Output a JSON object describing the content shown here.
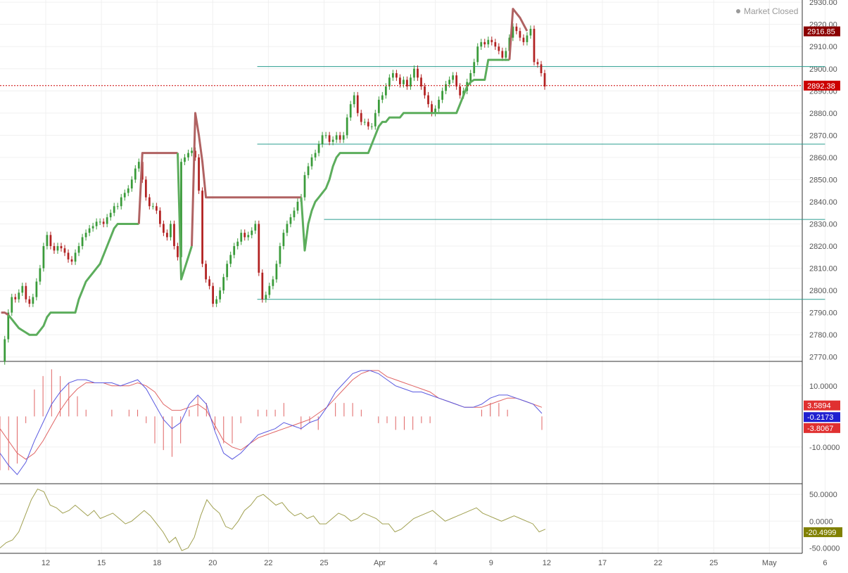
{
  "status": {
    "label": "Market Closed",
    "icon": "dot-icon"
  },
  "colors": {
    "up": "#3a9b3a",
    "down": "#b22222",
    "trail_up": "#5cad5c",
    "trail_down": "#b06262",
    "hline": "#2a9d8f",
    "macd_line": "#5a5ae0",
    "signal_line": "#e06464",
    "hist": "#e06464",
    "cci": "#a0a050",
    "last_price": "#cc0000",
    "grid": "#f0f0f0",
    "axis_text": "#555555"
  },
  "chart_data": [
    {
      "type": "candlestick",
      "grid": true,
      "ylim": [
        2768,
        2931
      ],
      "x_ticks": [
        "12",
        "15",
        "18",
        "20",
        "22",
        "25",
        "Apr",
        "4",
        "9",
        "12",
        "17",
        "22",
        "25",
        "May",
        "6"
      ],
      "y_ticks": [
        "2930.00",
        "2920.00",
        "2910.00",
        "2900.00",
        "2890.00",
        "2880.00",
        "2870.00",
        "2860.00",
        "2850.00",
        "2840.00",
        "2830.00",
        "2820.00",
        "2810.00",
        "2800.00",
        "2790.00",
        "2780.00",
        "2770.00"
      ],
      "price_labels": [
        {
          "name": "high-marker",
          "value": 2916.85,
          "text": "2916.85",
          "color": "#8b0000"
        },
        {
          "name": "last-price",
          "value": 2892.38,
          "text": "2892.38",
          "color": "#cc0000"
        }
      ],
      "horizontal_lines": [
        {
          "value": 2901,
          "x_from": 3.8,
          "x_to": 14
        },
        {
          "value": 2866,
          "x_from": 3.8,
          "x_to": 14
        },
        {
          "value": 2832,
          "x_from": 5.0,
          "x_to": 14
        },
        {
          "value": 2796,
          "x_from": 3.8,
          "x_to": 14
        }
      ],
      "candles_x_start": -0.8,
      "candles_x_step": 0.0634,
      "closes": [
        2768,
        2778,
        2790,
        2797,
        2796,
        2799,
        2802,
        2796,
        2794,
        2797,
        2804,
        2810,
        2820,
        2825,
        2820,
        2818,
        2820,
        2819,
        2817,
        2814,
        2813,
        2817,
        2820,
        2824,
        2826,
        2828,
        2829,
        2831,
        2831,
        2830,
        2833,
        2835,
        2838,
        2838,
        2842,
        2844,
        2846,
        2850,
        2855,
        2858,
        2850,
        2842,
        2838,
        2838,
        2836,
        2830,
        2826,
        2824,
        2830,
        2820,
        2815,
        2858,
        2860,
        2862,
        2863,
        2860,
        2845,
        2812,
        2805,
        2802,
        2794,
        2796,
        2800,
        2806,
        2812,
        2816,
        2820,
        2822,
        2826,
        2824,
        2825,
        2827,
        2830,
        2808,
        2796,
        2798,
        2802,
        2805,
        2812,
        2820,
        2826,
        2830,
        2833,
        2836,
        2840,
        2842,
        2852,
        2856,
        2860,
        2862,
        2866,
        2870,
        2870,
        2867,
        2868,
        2870,
        2868,
        2870,
        2878,
        2884,
        2888,
        2880,
        2876,
        2876,
        2874,
        2874,
        2880,
        2886,
        2888,
        2892,
        2896,
        2898,
        2896,
        2893,
        2895,
        2892,
        2896,
        2900,
        2896,
        2892,
        2888,
        2884,
        2880,
        2882,
        2886,
        2890,
        2893,
        2895,
        2897,
        2892,
        2888,
        2890,
        2894,
        2898,
        2903,
        2910,
        2912,
        2911,
        2913,
        2912,
        2910,
        2908,
        2905,
        2908,
        2914,
        2919,
        2917,
        2914,
        2912,
        2915,
        2918,
        2903,
        2902,
        2898,
        2892
      ],
      "trail_x_start": -0.8,
      "trail_x_step": 0.0634,
      "trail_stop": [
        2790,
        2790,
        2789,
        2787,
        2785,
        2783,
        2782,
        2781,
        2780,
        2780,
        2780,
        2782,
        2784,
        2788,
        2790,
        2790,
        2790,
        2790,
        2790,
        2790,
        2790,
        2790,
        2796,
        2800,
        2804,
        2806,
        2808,
        2810,
        2812,
        2816,
        2820,
        2824,
        2828,
        2830,
        2830,
        2830,
        2830,
        2830,
        2830,
        2830,
        2862,
        2862,
        2862,
        2862,
        2862,
        2862,
        2862,
        2862,
        2862,
        2862,
        2862,
        2805,
        2810,
        2815,
        2820,
        2880,
        2870,
        2858,
        2842,
        2842,
        2842,
        2842,
        2842,
        2842,
        2842,
        2842,
        2842,
        2842,
        2842,
        2842,
        2842,
        2842,
        2842,
        2842,
        2842,
        2842,
        2842,
        2842,
        2842,
        2842,
        2842,
        2842,
        2842,
        2842,
        2842,
        2842,
        2818,
        2830,
        2836,
        2840,
        2842,
        2844,
        2846,
        2850,
        2856,
        2860,
        2862,
        2862,
        2862,
        2862,
        2862,
        2862,
        2862,
        2862,
        2862,
        2866,
        2870,
        2874,
        2876,
        2876,
        2878,
        2878,
        2878,
        2878,
        2880,
        2880,
        2880,
        2880,
        2880,
        2880,
        2880,
        2880,
        2880,
        2880,
        2880,
        2880,
        2880,
        2880,
        2880,
        2880,
        2884,
        2888,
        2892,
        2894,
        2895,
        2895,
        2895,
        2895,
        2904,
        2904,
        2904,
        2904,
        2904,
        2904,
        2904,
        2927,
        2925,
        2923,
        2920,
        2917
      ],
      "trail_side": [
        "d",
        "d",
        "d",
        "u",
        "u",
        "u",
        "u",
        "u",
        "u",
        "u",
        "u",
        "u",
        "u",
        "u",
        "u",
        "u",
        "u",
        "u",
        "u",
        "u",
        "u",
        "u",
        "u",
        "u",
        "u",
        "u",
        "u",
        "u",
        "u",
        "u",
        "u",
        "u",
        "u",
        "u",
        "u",
        "u",
        "u",
        "u",
        "u",
        "u",
        "d",
        "d",
        "d",
        "d",
        "d",
        "d",
        "d",
        "d",
        "d",
        "d",
        "d",
        "u",
        "u",
        "u",
        "u",
        "d",
        "d",
        "d",
        "d",
        "d",
        "d",
        "d",
        "d",
        "d",
        "d",
        "d",
        "d",
        "d",
        "d",
        "d",
        "d",
        "d",
        "d",
        "d",
        "d",
        "d",
        "d",
        "d",
        "d",
        "d",
        "d",
        "d",
        "d",
        "d",
        "d",
        "d",
        "u",
        "u",
        "u",
        "u",
        "u",
        "u",
        "u",
        "u",
        "u",
        "u",
        "u",
        "u",
        "u",
        "u",
        "u",
        "u",
        "u",
        "u",
        "u",
        "u",
        "u",
        "u",
        "u",
        "u",
        "u",
        "u",
        "u",
        "u",
        "u",
        "u",
        "u",
        "u",
        "u",
        "u",
        "u",
        "u",
        "u",
        "u",
        "u",
        "u",
        "u",
        "u",
        "u",
        "u",
        "u",
        "u",
        "u",
        "u",
        "u",
        "u",
        "u",
        "u",
        "u",
        "u",
        "u",
        "u",
        "u",
        "u",
        "u",
        "d",
        "d",
        "d",
        "d",
        "d"
      ]
    },
    {
      "type": "macd",
      "ylim": [
        -22,
        18
      ],
      "y_ticks": [
        "10.0000",
        "-10.0000"
      ],
      "y_tick_values": [
        10,
        -10
      ],
      "value_labels": [
        {
          "name": "signal-value",
          "value": 3.5894,
          "text": "3.5894",
          "color": "#e03030"
        },
        {
          "name": "macd-value",
          "value": -0.2173,
          "text": "-0.2173",
          "color": "#2020d0"
        },
        {
          "name": "hist-value",
          "value": -3.8067,
          "text": "-3.8067",
          "color": "#e03030"
        }
      ],
      "macd": [
        -12,
        -16,
        -19,
        -15,
        -8,
        -2,
        4,
        8,
        11,
        12,
        12,
        11,
        11,
        11,
        10,
        11,
        12,
        9,
        4,
        -1,
        -4,
        -2,
        4,
        7,
        4,
        -5,
        -12,
        -14,
        -12,
        -9,
        -6,
        -5,
        -4,
        -2,
        -3,
        -4,
        -2,
        -1,
        3,
        8,
        11,
        14,
        15,
        15,
        14,
        12,
        10,
        9,
        8,
        8,
        7,
        6,
        5,
        4,
        3,
        3,
        4,
        6,
        7,
        7,
        6,
        5,
        4,
        1
      ],
      "signal": [
        -4,
        -8,
        -12,
        -14,
        -12,
        -8,
        -3,
        2,
        6,
        9,
        11,
        11,
        11,
        10,
        10,
        10,
        11,
        10,
        8,
        4,
        2,
        2,
        3,
        4,
        2,
        -3,
        -8,
        -10,
        -11,
        -9,
        -7,
        -6,
        -5,
        -4,
        -3,
        -2,
        -1,
        1,
        3,
        6,
        9,
        12,
        14,
        15,
        15,
        13,
        12,
        11,
        10,
        9,
        8,
        6,
        5,
        4,
        3,
        3,
        3,
        4,
        5,
        6,
        6,
        5,
        4,
        3
      ],
      "cci_note": "",
      "histogram_scale": 1.0
    },
    {
      "type": "line",
      "ylim": [
        -60,
        70
      ],
      "y_ticks": [
        "50.0000",
        "0.0000",
        "-50.0000"
      ],
      "y_tick_values": [
        50,
        0,
        -50
      ],
      "value_labels": [
        {
          "name": "cci-value",
          "value": -20.4999,
          "text": "-20.4999",
          "color": "#808000"
        }
      ],
      "values": [
        -50,
        -40,
        -35,
        -20,
        10,
        40,
        60,
        55,
        30,
        25,
        15,
        20,
        30,
        20,
        10,
        20,
        5,
        10,
        15,
        5,
        -5,
        0,
        10,
        20,
        10,
        -5,
        -20,
        -40,
        -30,
        -55,
        -50,
        -30,
        10,
        40,
        25,
        15,
        -10,
        -15,
        0,
        20,
        30,
        45,
        50,
        40,
        30,
        35,
        20,
        10,
        15,
        5,
        10,
        -5,
        -5,
        5,
        15,
        10,
        0,
        5,
        15,
        10,
        5,
        -5,
        -5,
        -20,
        -15,
        -5,
        5,
        10,
        15,
        20,
        10,
        0,
        5,
        10,
        15,
        20,
        25,
        15,
        10,
        5,
        0,
        5,
        10,
        5,
        0,
        -5,
        -20,
        -15
      ]
    }
  ]
}
